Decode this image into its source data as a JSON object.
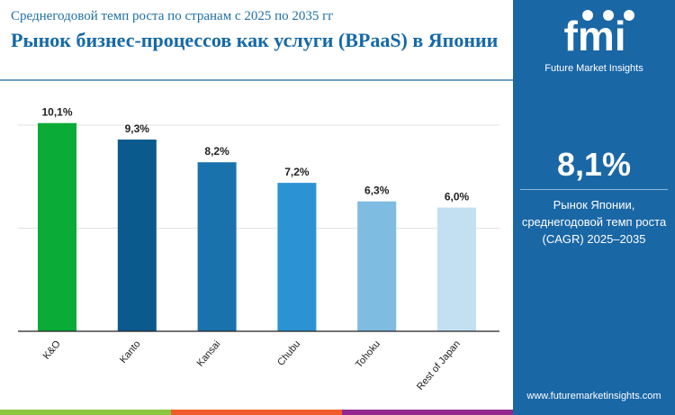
{
  "header": {
    "subtitle": "Среднегодовой темп роста по странам с 2025 по 2035 гг",
    "title": "Рынок бизнес-процессов как услуги (BPaaS) в Японии"
  },
  "panel": {
    "logo_text": "Future Market Insights",
    "logo_letters": "fmi",
    "cagr_value": "8,1%",
    "cagr_label": "Рынок Японии, среднегодовой темп роста (CAGR) 2025–2035",
    "url": "www.futuremarketinsights.com",
    "color": "#1a67a6"
  },
  "stripes": [
    "#8cc63f",
    "#f15a29",
    "#92278f"
  ],
  "chart_data": {
    "type": "bar",
    "categories": [
      "K&O",
      "Kanto",
      "Kansai",
      "Chubu",
      "Tohoku",
      "Rest of Japan"
    ],
    "values": [
      10.1,
      9.3,
      8.2,
      7.2,
      6.3,
      6.0
    ],
    "labels": [
      "10,1%",
      "9,3%",
      "8,2%",
      "7,2%",
      "6,3%",
      "6,0%"
    ],
    "colors": [
      "#0aab37",
      "#0b5a8e",
      "#1a72ad",
      "#2c93d2",
      "#7ebce2",
      "#c3e0f3"
    ],
    "ylim": [
      0,
      10.5
    ],
    "grid": true,
    "gridlines": [
      5,
      10
    ]
  }
}
